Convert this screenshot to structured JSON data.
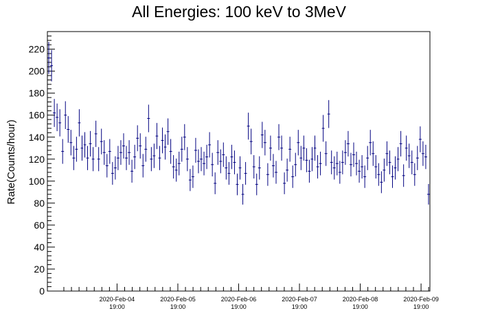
{
  "chart_data": {
    "type": "scatter",
    "title": "All Energies:  100 keV to 3MeV",
    "xlabel": "",
    "ylabel": "Rate(Counts/hour)",
    "ylim": [
      0,
      236
    ],
    "yticks": [
      0,
      20,
      40,
      60,
      80,
      100,
      120,
      140,
      160,
      180,
      200,
      220
    ],
    "xlim_hours_label": "2020-Feb-03 16:30 to 2020-Feb-09 23:30",
    "xticks": [
      {
        "date": "2020-Feb-04",
        "time": "19:00"
      },
      {
        "date": "2020-Feb-05",
        "time": "19:00"
      },
      {
        "date": "2020-Feb-06",
        "time": "19:00"
      },
      {
        "date": "2020-Feb-07",
        "time": "19:00"
      },
      {
        "date": "2020-Feb-08",
        "time": "19:00"
      },
      {
        "date": "2020-Feb-09",
        "time": "19:00"
      }
    ],
    "error_bar": "sqrt",
    "series": [
      {
        "color": "#000080",
        "values": [
          212,
          205,
          162,
          158,
          153,
          127,
          160,
          147,
          135,
          121,
          129,
          153,
          130,
          133,
          121,
          134,
          120,
          143,
          120,
          136,
          126,
          114,
          127,
          107,
          112,
          121,
          126,
          132,
          121,
          126,
          109,
          122,
          139,
          132,
          114,
          129,
          157,
          120,
          123,
          141,
          121,
          137,
          131,
          145,
          127,
          113,
          110,
          116,
          129,
          140,
          120,
          101,
          104,
          128,
          118,
          120,
          116,
          122,
          133,
          115,
          98,
          126,
          118,
          124,
          112,
          107,
          122,
          117,
          97,
          112,
          88,
          107,
          150,
          136,
          113,
          97,
          112,
          142,
          135,
          106,
          130,
          114,
          108,
          140,
          130,
          98,
          110,
          129,
          104,
          115,
          135,
          121,
          130,
          119,
          109,
          120,
          130,
          113,
          116,
          148,
          125,
          161,
          117,
          112,
          116,
          108,
          117,
          126,
          134,
          115,
          124,
          116,
          109,
          113,
          104,
          121,
          135,
          125,
          113,
          106,
          99,
          110,
          125,
          117,
          104,
          112,
          120,
          134,
          105,
          130,
          123,
          117,
          106,
          121,
          138,
          125,
          122,
          88
        ]
      }
    ]
  }
}
